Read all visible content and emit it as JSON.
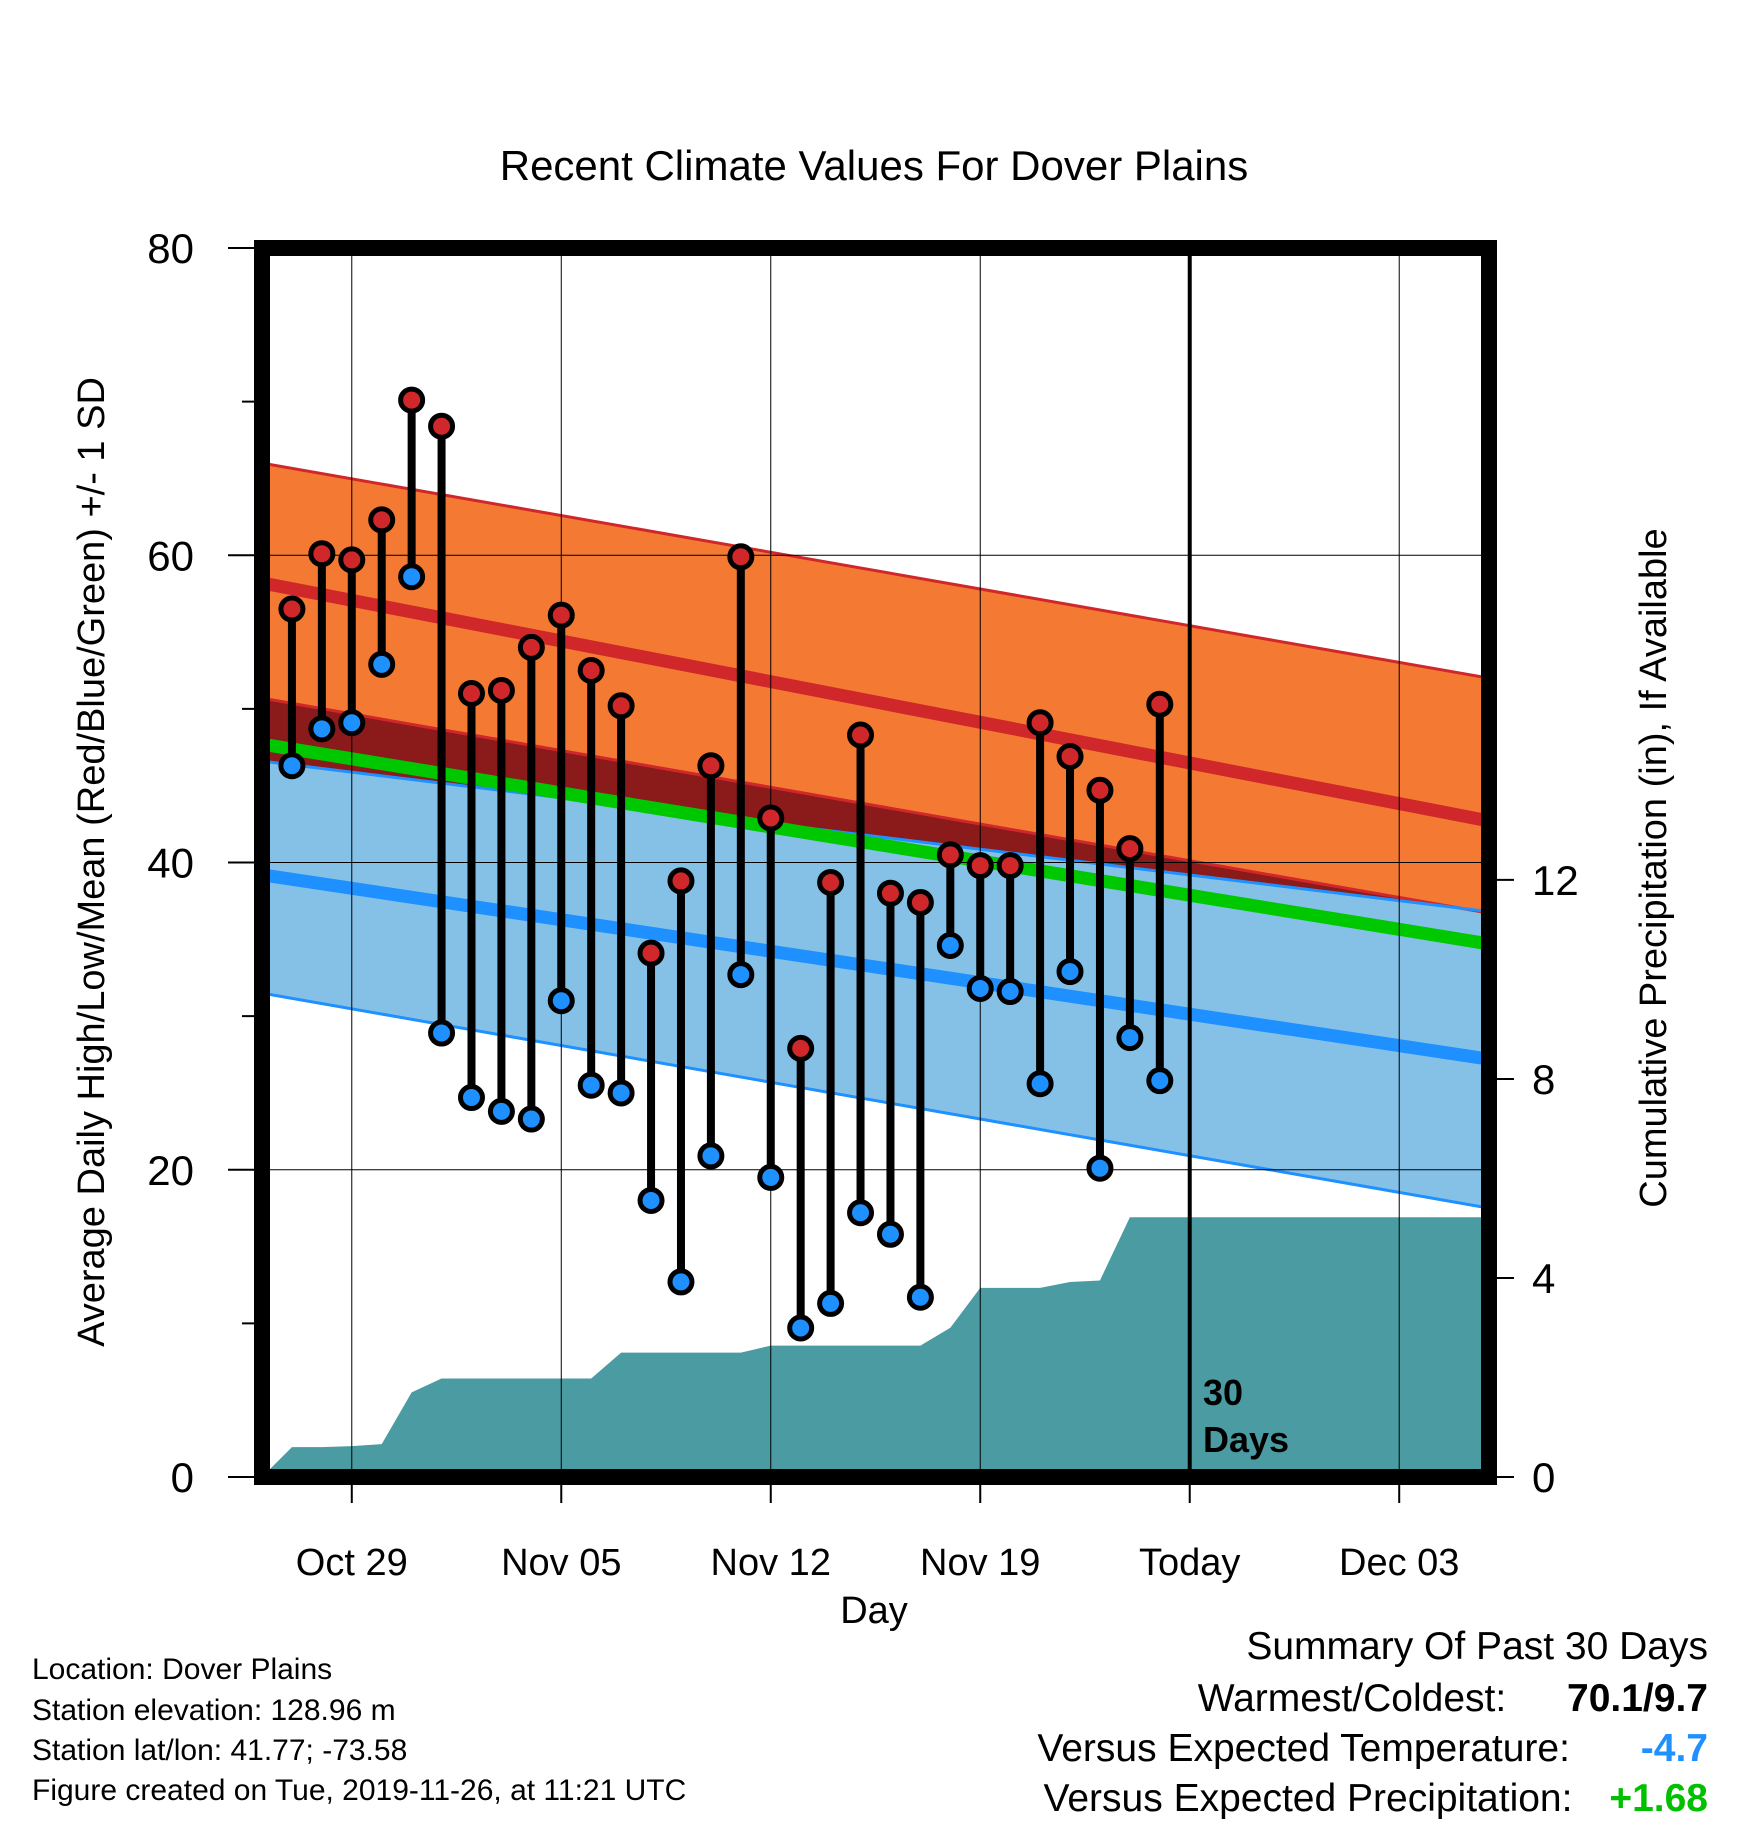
{
  "chart_data": {
    "type": "line",
    "title": "Recent Climate Values For Dover Plains",
    "xlabel": "Day",
    "ylabel": "Average Daily High/Low/Mean (Red/Blue/Green) +/- 1 SD",
    "y2label": "Cumulative Precipitation (in), If Available",
    "ylim": [
      0,
      80
    ],
    "y2lim": [
      0,
      24.7
    ],
    "xlim": [
      "2019-10-26",
      "2019-12-06"
    ],
    "yticks": [
      "0",
      "20",
      "40",
      "60",
      "80"
    ],
    "y2ticks": [
      "0",
      "4",
      "8",
      "12"
    ],
    "xticks": [
      {
        "date": "2019-10-29",
        "label": "Oct 29"
      },
      {
        "date": "2019-11-05",
        "label": "Nov 05"
      },
      {
        "date": "2019-11-12",
        "label": "Nov 12"
      },
      {
        "date": "2019-11-19",
        "label": "Nov 19"
      },
      {
        "date": "2019-11-26",
        "label": "Today"
      },
      {
        "date": "2019-12-03",
        "label": "Dec 03"
      }
    ],
    "today": "2019-11-26",
    "today_annotation": [
      "30",
      "Days"
    ],
    "grid": true,
    "normals": {
      "x": [
        "2019-10-26",
        "2019-12-06"
      ],
      "high_mean": [
        58.2,
        42.7
      ],
      "high_upper": [
        66,
        52
      ],
      "high_lower": [
        50.7,
        36.7
      ],
      "low_mean": [
        39.2,
        27.2
      ],
      "low_upper": [
        46.6,
        36.8
      ],
      "low_lower": [
        31.5,
        17.5
      ],
      "mean": [
        47.7,
        34.7
      ]
    },
    "colors": {
      "high_band": "#f47a33",
      "high_line": "#d0282a",
      "low_band": "#85c1e7",
      "low_line": "#1e90ff",
      "mean_line": "#00c800",
      "overlap": "#8b1a1a",
      "precip": "#4b9ba2",
      "high_marker": "#d0282a",
      "low_marker": "#1e90ff"
    },
    "series": [
      {
        "name": "High",
        "x": [
          "2019-10-27",
          "2019-10-28",
          "2019-10-29",
          "2019-10-30",
          "2019-10-31",
          "2019-11-01",
          "2019-11-02",
          "2019-11-03",
          "2019-11-04",
          "2019-11-05",
          "2019-11-06",
          "2019-11-07",
          "2019-11-08",
          "2019-11-09",
          "2019-11-10",
          "2019-11-11",
          "2019-11-12",
          "2019-11-13",
          "2019-11-14",
          "2019-11-15",
          "2019-11-16",
          "2019-11-17",
          "2019-11-18",
          "2019-11-19",
          "2019-11-20",
          "2019-11-21",
          "2019-11-22",
          "2019-11-23",
          "2019-11-24",
          "2019-11-25"
        ],
        "values": [
          56.5,
          60.1,
          59.7,
          62.3,
          70.1,
          68.4,
          51.0,
          51.2,
          54.0,
          56.1,
          52.5,
          50.2,
          34.1,
          38.8,
          46.3,
          59.9,
          42.9,
          27.9,
          38.7,
          48.3,
          38.0,
          37.4,
          40.5,
          39.8,
          39.8,
          49.1,
          46.9,
          44.7,
          40.9,
          50.3
        ]
      },
      {
        "name": "Low",
        "x": [
          "2019-10-27",
          "2019-10-28",
          "2019-10-29",
          "2019-10-30",
          "2019-10-31",
          "2019-11-01",
          "2019-11-02",
          "2019-11-03",
          "2019-11-04",
          "2019-11-05",
          "2019-11-06",
          "2019-11-07",
          "2019-11-08",
          "2019-11-09",
          "2019-11-10",
          "2019-11-11",
          "2019-11-12",
          "2019-11-13",
          "2019-11-14",
          "2019-11-15",
          "2019-11-16",
          "2019-11-17",
          "2019-11-18",
          "2019-11-19",
          "2019-11-20",
          "2019-11-21",
          "2019-11-22",
          "2019-11-23",
          "2019-11-24",
          "2019-11-25"
        ],
        "values": [
          46.3,
          48.7,
          49.1,
          52.9,
          58.6,
          28.9,
          24.7,
          23.8,
          23.3,
          31.0,
          25.5,
          25.0,
          18.0,
          12.7,
          20.9,
          32.7,
          19.5,
          9.7,
          11.3,
          17.2,
          15.8,
          11.7,
          34.6,
          31.8,
          31.6,
          25.6,
          32.9,
          20.1,
          28.6,
          25.8
        ]
      },
      {
        "name": "Precipitation",
        "x": [
          "2019-10-26",
          "2019-10-27",
          "2019-10-28",
          "2019-10-29",
          "2019-10-30",
          "2019-10-31",
          "2019-11-01",
          "2019-11-02",
          "2019-11-03",
          "2019-11-04",
          "2019-11-05",
          "2019-11-06",
          "2019-11-07",
          "2019-11-08",
          "2019-11-09",
          "2019-11-10",
          "2019-11-11",
          "2019-11-12",
          "2019-11-13",
          "2019-11-14",
          "2019-11-15",
          "2019-11-16",
          "2019-11-17",
          "2019-11-18",
          "2019-11-19",
          "2019-11-20",
          "2019-11-21",
          "2019-11-22",
          "2019-11-23",
          "2019-11-24",
          "2019-11-25",
          "2019-11-26",
          "2019-12-06"
        ],
        "values": [
          0.0,
          0.6,
          0.6,
          0.62,
          0.66,
          1.7,
          1.98,
          1.98,
          1.98,
          1.98,
          1.98,
          1.98,
          2.5,
          2.5,
          2.5,
          2.5,
          2.5,
          2.64,
          2.64,
          2.64,
          2.64,
          2.64,
          2.64,
          3.0,
          3.8,
          3.8,
          3.8,
          3.92,
          3.95,
          5.22,
          5.22,
          5.22,
          5.22
        ]
      }
    ]
  },
  "info": {
    "location": "Location: Dover Plains",
    "elevation": "Station elevation: 128.96 m",
    "latlon": "Station lat/lon: 41.77; -73.58",
    "created": "Figure created on Tue, 2019-11-26, at 11:21 UTC"
  },
  "summary": {
    "heading": "Summary Of Past 30 Days",
    "warmest_label": "Warmest/Coldest:",
    "warmest_value": "70.1/9.7",
    "temp_label": "Versus Expected Temperature:",
    "temp_value": "-4.7",
    "temp_color": "#1e90ff",
    "precip_label": "Versus Expected Precipitation:",
    "precip_value": "+1.68",
    "precip_color": "#00c000"
  }
}
